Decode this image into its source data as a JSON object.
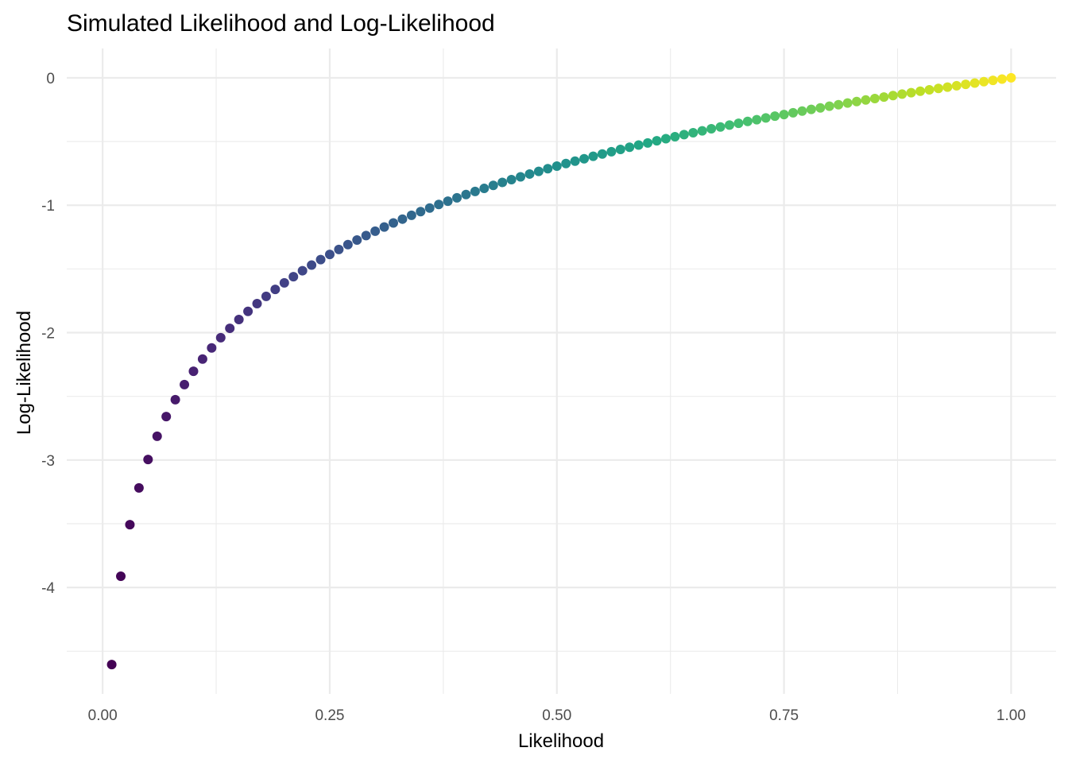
{
  "chart_data": {
    "type": "scatter",
    "title": "Simulated Likelihood and Log-Likelihood",
    "xlabel": "Likelihood",
    "ylabel": "Log-Likelihood",
    "xlim": [
      -0.0395,
      1.0495
    ],
    "ylim": [
      -4.8352,
      0.2303
    ],
    "x_ticks": [
      0,
      0.25,
      0.5,
      0.75,
      1
    ],
    "x_tick_labels": [
      "0.00",
      "0.25",
      "0.50",
      "0.75",
      "1.00"
    ],
    "y_ticks": [
      0,
      -1,
      -2,
      -3,
      -4
    ],
    "y_tick_labels": [
      "0",
      "-1",
      "-2",
      "-3",
      "-4"
    ],
    "grid": true,
    "legend": "none",
    "color_scale": "viridis",
    "color_by": "Likelihood",
    "series": [
      {
        "x": [
          0.01,
          0.02,
          0.03,
          0.04,
          0.05,
          0.06,
          0.07,
          0.08,
          0.09,
          0.1,
          0.11,
          0.12,
          0.13,
          0.14,
          0.15,
          0.16,
          0.17,
          0.18,
          0.19,
          0.2,
          0.21,
          0.22,
          0.23,
          0.24,
          0.25,
          0.26,
          0.27,
          0.28,
          0.29,
          0.3,
          0.31,
          0.32,
          0.33,
          0.34,
          0.35,
          0.36,
          0.37,
          0.38,
          0.39,
          0.4,
          0.41,
          0.42,
          0.43,
          0.44,
          0.45,
          0.46,
          0.47,
          0.48,
          0.49,
          0.5,
          0.51,
          0.52,
          0.53,
          0.54,
          0.55,
          0.56,
          0.57,
          0.58,
          0.59,
          0.6,
          0.61,
          0.62,
          0.63,
          0.64,
          0.65,
          0.66,
          0.67,
          0.68,
          0.69,
          0.7,
          0.71,
          0.72,
          0.73,
          0.74,
          0.75,
          0.76,
          0.77,
          0.78,
          0.79,
          0.8,
          0.81,
          0.82,
          0.83,
          0.84,
          0.85,
          0.86,
          0.87,
          0.88,
          0.89,
          0.9,
          0.91,
          0.92,
          0.93,
          0.94,
          0.95,
          0.96,
          0.97,
          0.98,
          0.99,
          1.0
        ],
        "y": [
          -4.605,
          -3.912,
          -3.507,
          -3.219,
          -2.996,
          -2.813,
          -2.659,
          -2.526,
          -2.408,
          -2.303,
          -2.207,
          -2.12,
          -2.04,
          -1.966,
          -1.897,
          -1.833,
          -1.772,
          -1.715,
          -1.661,
          -1.609,
          -1.561,
          -1.514,
          -1.47,
          -1.427,
          -1.386,
          -1.347,
          -1.309,
          -1.273,
          -1.238,
          -1.204,
          -1.171,
          -1.139,
          -1.109,
          -1.079,
          -1.05,
          -1.022,
          -0.994,
          -0.968,
          -0.942,
          -0.916,
          -0.892,
          -0.868,
          -0.844,
          -0.821,
          -0.799,
          -0.777,
          -0.755,
          -0.734,
          -0.713,
          -0.693,
          -0.673,
          -0.654,
          -0.635,
          -0.616,
          -0.598,
          -0.58,
          -0.562,
          -0.545,
          -0.528,
          -0.511,
          -0.494,
          -0.478,
          -0.462,
          -0.446,
          -0.431,
          -0.416,
          -0.4,
          -0.386,
          -0.371,
          -0.357,
          -0.342,
          -0.329,
          -0.315,
          -0.301,
          -0.288,
          -0.274,
          -0.261,
          -0.248,
          -0.236,
          -0.223,
          -0.211,
          -0.198,
          -0.186,
          -0.174,
          -0.163,
          -0.151,
          -0.139,
          -0.128,
          -0.117,
          -0.105,
          -0.094,
          -0.083,
          -0.073,
          -0.062,
          -0.051,
          -0.041,
          -0.03,
          -0.02,
          -0.01,
          0.0
        ]
      }
    ]
  }
}
